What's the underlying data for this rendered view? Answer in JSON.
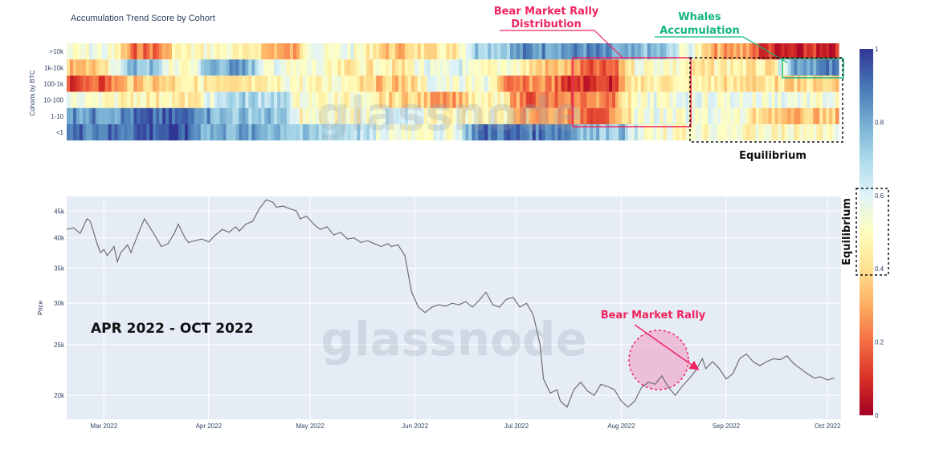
{
  "colors": {
    "plot_bg": "#e5ecf6",
    "price_line": "#6e6e6e",
    "red_annotation": "#f0245e",
    "green_annotation": "#13b77a",
    "colorscale": [
      "#a50026",
      "#d73027",
      "#f46d43",
      "#fdae61",
      "#fee090",
      "#ffffbf",
      "#e0f3f8",
      "#abd9e9",
      "#74add1",
      "#4575b4",
      "#313695"
    ]
  },
  "watermark": "glassnode",
  "chart_data": [
    {
      "type": "heatmap",
      "title": "Accumulation Trend Score by Cohort",
      "ylabel": "Cohorts by BTC",
      "rows": [
        ">10k",
        "1k-10k",
        "100-1k",
        "10-100",
        "1-10",
        "<1"
      ],
      "period_count": 242,
      "segments": {
        ">10k": [
          [
            0,
            18,
            0.55
          ],
          [
            18,
            32,
            0.2
          ],
          [
            32,
            60,
            0.5
          ],
          [
            60,
            75,
            0.3
          ],
          [
            75,
            95,
            0.55
          ],
          [
            95,
            110,
            0.35
          ],
          [
            110,
            125,
            0.45
          ],
          [
            125,
            140,
            0.75
          ],
          [
            140,
            170,
            0.85
          ],
          [
            170,
            190,
            0.75
          ],
          [
            190,
            200,
            0.55
          ],
          [
            200,
            215,
            0.3
          ],
          [
            215,
            242,
            0.1
          ]
        ],
        "1k-10k": [
          [
            0,
            15,
            0.35
          ],
          [
            15,
            30,
            0.75
          ],
          [
            30,
            42,
            0.5
          ],
          [
            42,
            60,
            0.8
          ],
          [
            60,
            85,
            0.55
          ],
          [
            85,
            110,
            0.45
          ],
          [
            110,
            130,
            0.6
          ],
          [
            130,
            145,
            0.5
          ],
          [
            145,
            160,
            0.35
          ],
          [
            160,
            175,
            0.2
          ],
          [
            175,
            195,
            0.5
          ],
          [
            195,
            225,
            0.45
          ],
          [
            225,
            242,
            0.85
          ]
        ],
        "100-1k": [
          [
            0,
            15,
            0.15
          ],
          [
            15,
            35,
            0.35
          ],
          [
            35,
            60,
            0.45
          ],
          [
            60,
            90,
            0.5
          ],
          [
            90,
            110,
            0.35
          ],
          [
            110,
            135,
            0.55
          ],
          [
            135,
            155,
            0.25
          ],
          [
            155,
            175,
            0.1
          ],
          [
            175,
            205,
            0.45
          ],
          [
            205,
            242,
            0.4
          ]
        ],
        "10-100": [
          [
            0,
            15,
            0.55
          ],
          [
            15,
            45,
            0.45
          ],
          [
            45,
            70,
            0.7
          ],
          [
            70,
            95,
            0.5
          ],
          [
            95,
            112,
            0.4
          ],
          [
            112,
            125,
            0.3
          ],
          [
            125,
            140,
            0.45
          ],
          [
            140,
            160,
            0.2
          ],
          [
            160,
            175,
            0.25
          ],
          [
            175,
            242,
            0.55
          ]
        ],
        "1-10": [
          [
            0,
            20,
            0.85
          ],
          [
            20,
            45,
            0.9
          ],
          [
            45,
            70,
            0.75
          ],
          [
            70,
            95,
            0.5
          ],
          [
            95,
            110,
            0.6
          ],
          [
            110,
            140,
            0.5
          ],
          [
            140,
            160,
            0.3
          ],
          [
            160,
            175,
            0.2
          ],
          [
            175,
            215,
            0.55
          ],
          [
            215,
            242,
            0.35
          ]
        ],
        "<1": [
          [
            0,
            20,
            0.9
          ],
          [
            20,
            40,
            0.95
          ],
          [
            40,
            70,
            0.8
          ],
          [
            70,
            95,
            0.7
          ],
          [
            95,
            125,
            0.55
          ],
          [
            125,
            160,
            0.9
          ],
          [
            160,
            178,
            0.75
          ],
          [
            178,
            242,
            0.5
          ]
        ]
      },
      "colorbar": {
        "ticks": [
          "0",
          "0.2",
          "0.4",
          "0.6",
          "0.8",
          "1"
        ],
        "range": [
          0,
          1
        ]
      }
    },
    {
      "type": "line",
      "ylabel": "Price",
      "scale": "log",
      "ylim": [
        18000,
        48000
      ],
      "yticks": [
        20000,
        25000,
        30000,
        35000,
        40000,
        45000
      ],
      "ytick_labels": [
        "20k",
        "25k",
        "30k",
        "35k",
        "40k",
        "45k"
      ],
      "x_start": "2022-02-18",
      "x_end": "2022-10-05",
      "xticks": [
        "2022-03-01",
        "2022-04-01",
        "2022-05-01",
        "2022-06-01",
        "2022-07-01",
        "2022-08-01",
        "2022-09-01",
        "2022-10-01"
      ],
      "xtick_labels": [
        "Mar 2022",
        "Apr 2022",
        "May 2022",
        "Jun 2022",
        "Jul 2022",
        "Aug 2022",
        "Sep 2022",
        "Oct 2022"
      ],
      "points": [
        [
          "2022-02-18",
          41500
        ],
        [
          "2022-02-20",
          41800
        ],
        [
          "2022-02-22",
          40800
        ],
        [
          "2022-02-24",
          43500
        ],
        [
          "2022-02-25",
          43000
        ],
        [
          "2022-02-27",
          39000
        ],
        [
          "2022-02-28",
          37500
        ],
        [
          "2022-03-01",
          38000
        ],
        [
          "2022-03-02",
          37000
        ],
        [
          "2022-03-04",
          38500
        ],
        [
          "2022-03-05",
          36000
        ],
        [
          "2022-03-06",
          37500
        ],
        [
          "2022-03-08",
          38800
        ],
        [
          "2022-03-09",
          37500
        ],
        [
          "2022-03-10",
          39000
        ],
        [
          "2022-03-12",
          42000
        ],
        [
          "2022-03-13",
          43500
        ],
        [
          "2022-03-15",
          41500
        ],
        [
          "2022-03-17",
          39500
        ],
        [
          "2022-03-18",
          38500
        ],
        [
          "2022-03-20",
          39000
        ],
        [
          "2022-03-22",
          41000
        ],
        [
          "2022-03-23",
          42500
        ],
        [
          "2022-03-25",
          40000
        ],
        [
          "2022-03-26",
          39200
        ],
        [
          "2022-03-28",
          39500
        ],
        [
          "2022-03-30",
          39800
        ],
        [
          "2022-04-01",
          39300
        ],
        [
          "2022-04-03",
          40500
        ],
        [
          "2022-04-05",
          41500
        ],
        [
          "2022-04-07",
          41000
        ],
        [
          "2022-04-09",
          42000
        ],
        [
          "2022-04-10",
          41200
        ],
        [
          "2022-04-12",
          42500
        ],
        [
          "2022-04-14",
          43000
        ],
        [
          "2022-04-16",
          45500
        ],
        [
          "2022-04-18",
          47300
        ],
        [
          "2022-04-20",
          46800
        ],
        [
          "2022-04-21",
          45800
        ],
        [
          "2022-04-23",
          46000
        ],
        [
          "2022-04-25",
          45500
        ],
        [
          "2022-04-27",
          45000
        ],
        [
          "2022-04-28",
          43500
        ],
        [
          "2022-04-30",
          44000
        ],
        [
          "2022-05-02",
          42500
        ],
        [
          "2022-05-04",
          41500
        ],
        [
          "2022-05-06",
          42000
        ],
        [
          "2022-05-08",
          40500
        ],
        [
          "2022-05-10",
          41000
        ],
        [
          "2022-05-12",
          39800
        ],
        [
          "2022-05-14",
          40000
        ],
        [
          "2022-05-16",
          39200
        ],
        [
          "2022-05-18",
          39500
        ],
        [
          "2022-05-20",
          39000
        ],
        [
          "2022-05-22",
          38500
        ],
        [
          "2022-05-24",
          39000
        ],
        [
          "2022-05-25",
          38500
        ],
        [
          "2022-05-27",
          38800
        ],
        [
          "2022-05-29",
          37000
        ],
        [
          "2022-05-31",
          31500
        ],
        [
          "2022-06-02",
          29500
        ],
        [
          "2022-06-04",
          28800
        ],
        [
          "2022-06-06",
          29500
        ],
        [
          "2022-06-08",
          29800
        ],
        [
          "2022-06-10",
          29600
        ],
        [
          "2022-06-12",
          30000
        ],
        [
          "2022-06-14",
          29800
        ],
        [
          "2022-06-16",
          30200
        ],
        [
          "2022-06-18",
          29500
        ],
        [
          "2022-06-20",
          30400
        ],
        [
          "2022-06-22",
          31500
        ],
        [
          "2022-06-24",
          29800
        ],
        [
          "2022-06-26",
          29500
        ],
        [
          "2022-06-28",
          30500
        ],
        [
          "2022-06-30",
          30800
        ],
        [
          "2022-07-02",
          29500
        ],
        [
          "2022-07-04",
          30000
        ],
        [
          "2022-07-06",
          28500
        ],
        [
          "2022-07-08",
          25000
        ],
        [
          "2022-07-09",
          21500
        ],
        [
          "2022-07-11",
          20200
        ],
        [
          "2022-07-13",
          20500
        ],
        [
          "2022-07-14",
          19500
        ],
        [
          "2022-07-16",
          19000
        ],
        [
          "2022-07-18",
          20500
        ],
        [
          "2022-07-20",
          21200
        ],
        [
          "2022-07-22",
          20400
        ],
        [
          "2022-07-24",
          20000
        ],
        [
          "2022-07-26",
          21000
        ],
        [
          "2022-07-28",
          20800
        ],
        [
          "2022-07-30",
          20500
        ],
        [
          "2022-08-01",
          19500
        ],
        [
          "2022-08-03",
          19000
        ],
        [
          "2022-08-05",
          19500
        ],
        [
          "2022-08-07",
          20700
        ],
        [
          "2022-08-09",
          21200
        ],
        [
          "2022-08-11",
          21000
        ],
        [
          "2022-08-13",
          21800
        ],
        [
          "2022-08-15",
          20700
        ],
        [
          "2022-08-17",
          20000
        ],
        [
          "2022-08-19",
          20800
        ],
        [
          "2022-08-21",
          21500
        ],
        [
          "2022-08-23",
          22300
        ],
        [
          "2022-08-25",
          23500
        ],
        [
          "2022-08-26",
          22500
        ],
        [
          "2022-08-28",
          23200
        ],
        [
          "2022-08-30",
          22500
        ],
        [
          "2022-09-01",
          21500
        ],
        [
          "2022-09-03",
          22000
        ],
        [
          "2022-09-05",
          23500
        ],
        [
          "2022-09-07",
          24000
        ],
        [
          "2022-09-09",
          23200
        ],
        [
          "2022-09-11",
          22800
        ],
        [
          "2022-09-13",
          23200
        ],
        [
          "2022-09-15",
          23500
        ],
        [
          "2022-09-17",
          23400
        ],
        [
          "2022-09-19",
          23800
        ],
        [
          "2022-09-21",
          23000
        ],
        [
          "2022-09-23",
          22500
        ],
        [
          "2022-09-25",
          22000
        ],
        [
          "2022-09-27",
          21600
        ],
        [
          "2022-09-29",
          21700
        ],
        [
          "2022-10-01",
          21400
        ],
        [
          "2022-10-03",
          21600
        ]
      ],
      "note": ""
    }
  ],
  "annotations": {
    "period_label": "APR 2022 - OCT 2022",
    "bear_rally_distribution_line1": "Bear Market Rally",
    "bear_rally_distribution_line2": "Distribution",
    "whales_line1": "Whales",
    "whales_line2": "Accumulation",
    "equilibrium": "Equilibrium",
    "equilibrium_vertical": "Equilibrium",
    "bear_rally": "Bear Market Rally"
  }
}
